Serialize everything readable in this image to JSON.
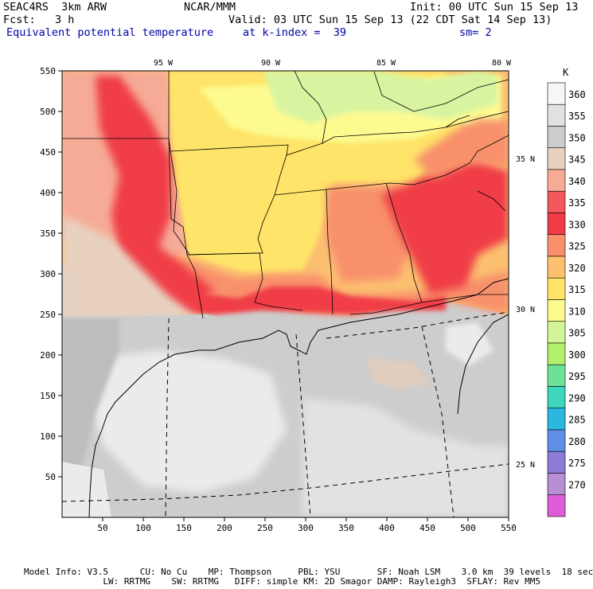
{
  "header": {
    "model": "SEAC4RS  3km ARW",
    "center": "NCAR/MMM",
    "init": "Init: 00 UTC Sun 15 Sep 13",
    "fcst": "Fcst:   3 h",
    "valid": "Valid: 03 UTC Sun 15 Sep 13 (22 CDT Sat 14 Sep 13)",
    "field": "Equivalent potential temperature",
    "level": "at k-index =  39",
    "smooth": "sm= 2"
  },
  "axes": {
    "x_ticks": [
      "50",
      "100",
      "150",
      "200",
      "250",
      "300",
      "350",
      "400",
      "450",
      "500",
      "550"
    ],
    "y_ticks": [
      "50",
      "100",
      "150",
      "200",
      "250",
      "300",
      "350",
      "400",
      "450",
      "500",
      "550"
    ],
    "lon_labels": [
      "95 W",
      "90 W",
      "85 W",
      "80 W"
    ],
    "lat_labels": [
      "35 N",
      "30 N",
      "25 N"
    ]
  },
  "colorbar": {
    "unit": "K",
    "levels": [
      {
        "label": "360",
        "color": "#f6f6f6"
      },
      {
        "label": "355",
        "color": "#e2e2e2"
      },
      {
        "label": "350",
        "color": "#cdcdcd"
      },
      {
        "label": "345",
        "color": "#e8d2bf"
      },
      {
        "label": "340",
        "color": "#f6ab96"
      },
      {
        "label": "335",
        "color": "#f2585c"
      },
      {
        "label": "330",
        "color": "#f03c46"
      },
      {
        "label": "325",
        "color": "#f8906c"
      },
      {
        "label": "320",
        "color": "#fcc070"
      },
      {
        "label": "315",
        "color": "#fee468"
      },
      {
        "label": "310",
        "color": "#fdfa90"
      },
      {
        "label": "305",
        "color": "#d2f59a"
      },
      {
        "label": "300",
        "color": "#b2ef6c"
      },
      {
        "label": "295",
        "color": "#6fe098"
      },
      {
        "label": "290",
        "color": "#3fd6be"
      },
      {
        "label": "285",
        "color": "#2ab7e0"
      },
      {
        "label": "280",
        "color": "#5e8ee6"
      },
      {
        "label": "275",
        "color": "#8e7ad8"
      },
      {
        "label": "270",
        "color": "#b690d2"
      },
      {
        "label": "",
        "color": "#dd5cd8"
      }
    ]
  },
  "footer": {
    "line1": "Model Info: V3.5      CU: No Cu    MP: Thompson     PBL: YSU       SF: Noah LSM    3.0 km  39 levels  18 sec",
    "line2": "               LW: RRTMG    SW: RRTMG   DIFF: simple KM: 2D Smagor DAMP: Rayleigh3  SFLAY: Rev MM5"
  },
  "colors": {
    "gulf_light": "#ebebeb",
    "gulf_mid": "#cfcfcf",
    "land_light": "#fffaa6",
    "green": "#d8f4a0",
    "orange": "#f89466",
    "red": "#f0434d",
    "salmon": "#f6ac98",
    "tan": "#e6d2c0"
  }
}
